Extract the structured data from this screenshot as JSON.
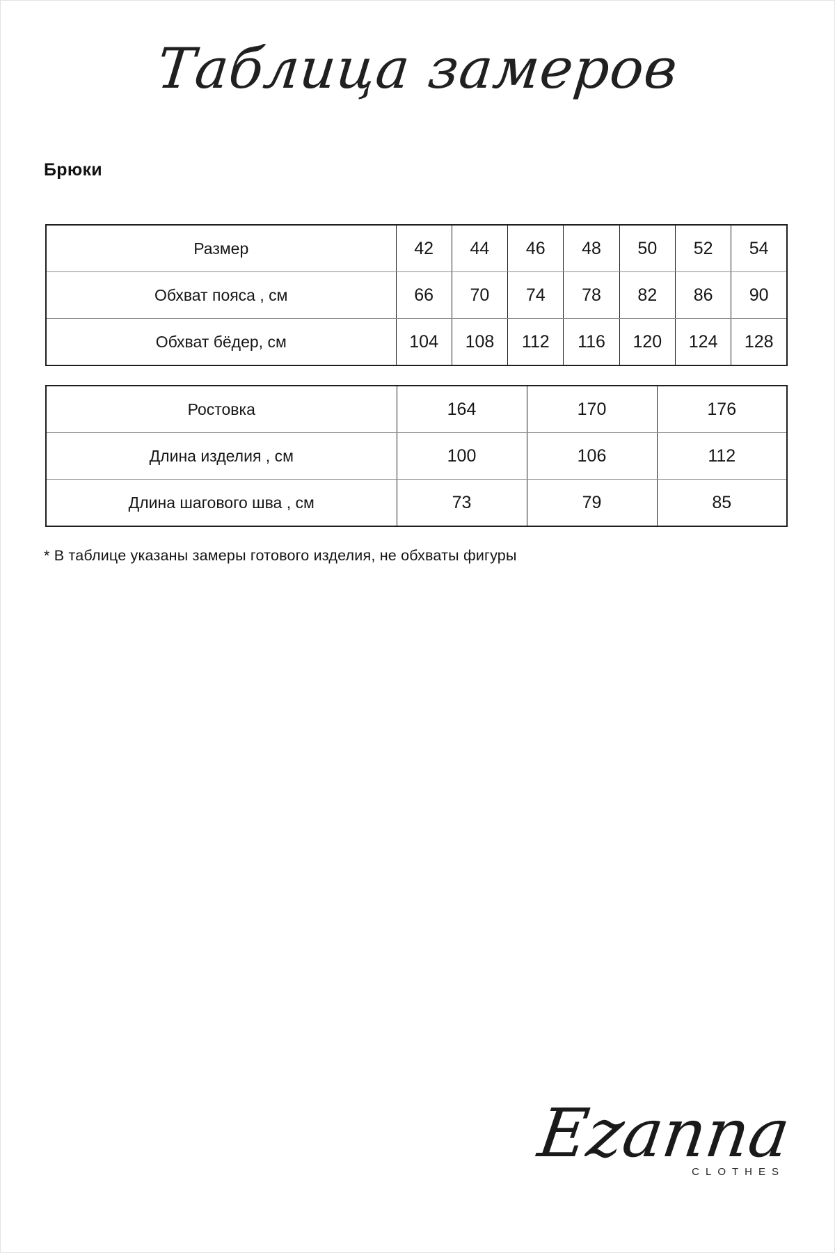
{
  "page": {
    "title_script": "Таблица замеров",
    "section_heading": "Брюки",
    "footnote": "* В таблице указаны замеры готового изделия, не обхваты фигуры"
  },
  "size_table": {
    "rows": [
      {
        "label": "Размер",
        "values": [
          "42",
          "44",
          "46",
          "48",
          "50",
          "52",
          "54"
        ]
      },
      {
        "label": "Обхват пояса , см",
        "values": [
          "66",
          "70",
          "74",
          "78",
          "82",
          "86",
          "90"
        ]
      },
      {
        "label": "Обхват бёдер, см",
        "values": [
          "104",
          "108",
          "112",
          "116",
          "120",
          "124",
          "128"
        ]
      }
    ]
  },
  "length_table": {
    "rows": [
      {
        "label": "Ростовка",
        "values": [
          "164",
          "170",
          "176"
        ]
      },
      {
        "label": "Длина изделия , см",
        "values": [
          "100",
          "106",
          "112"
        ]
      },
      {
        "label": "Длина шагового шва , см",
        "values": [
          "73",
          "79",
          "85"
        ]
      }
    ]
  },
  "logo": {
    "brand": "Ezanna",
    "sub": "CLOTHES"
  }
}
